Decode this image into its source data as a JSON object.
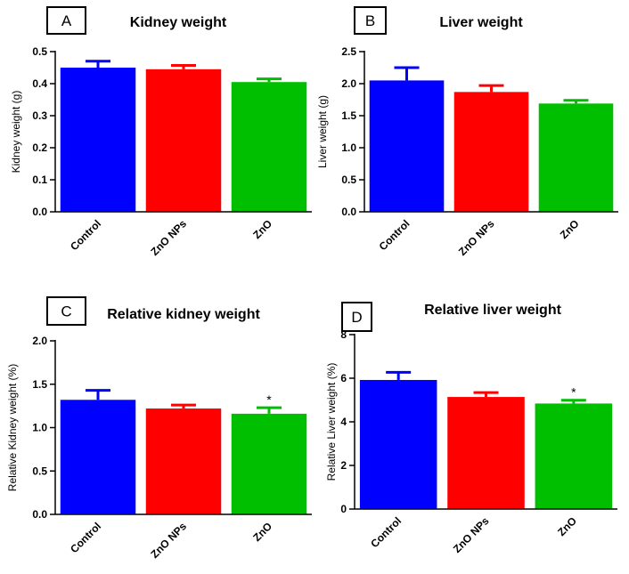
{
  "colors": {
    "Control": "#0000ff",
    "ZnO NPs": "#ff0000",
    "ZnO": "#00bf00",
    "axis": "#000000"
  },
  "chart_data": [
    {
      "panel": "A",
      "type": "bar",
      "title": "Kidney weight",
      "xlabel": "",
      "ylabel": "Kidney weight (g)",
      "categories": [
        "Control",
        "ZnO NPs",
        "ZnO"
      ],
      "values": [
        0.45,
        0.445,
        0.405
      ],
      "errors": [
        0.02,
        0.012,
        0.01
      ],
      "annotations": [
        "",
        "",
        ""
      ],
      "ylim": [
        0,
        0.5
      ],
      "yticks": [
        0.0,
        0.1,
        0.2,
        0.3,
        0.4,
        0.5
      ],
      "ytick_labels": [
        "0.0",
        "0.1",
        "0.2",
        "0.3",
        "0.4",
        "0.5"
      ]
    },
    {
      "panel": "B",
      "type": "bar",
      "title": "Liver weight",
      "xlabel": "",
      "ylabel": "Liver weight (g)",
      "categories": [
        "Control",
        "ZnO NPs",
        "ZnO"
      ],
      "values": [
        2.05,
        1.87,
        1.69
      ],
      "errors": [
        0.2,
        0.1,
        0.05
      ],
      "annotations": [
        "",
        "",
        ""
      ],
      "ylim": [
        0,
        2.5
      ],
      "yticks": [
        0.0,
        0.5,
        1.0,
        1.5,
        2.0,
        2.5
      ],
      "ytick_labels": [
        "0.0",
        "0.5",
        "1.0",
        "1.5",
        "2.0",
        "2.5"
      ]
    },
    {
      "panel": "C",
      "type": "bar",
      "title": "Relative kidney weight",
      "xlabel": "",
      "ylabel": "Relative Kidney weight (%)",
      "categories": [
        "Control",
        "ZnO NPs",
        "ZnO"
      ],
      "values": [
        1.32,
        1.22,
        1.16
      ],
      "errors": [
        0.11,
        0.04,
        0.07
      ],
      "annotations": [
        "",
        "",
        "*"
      ],
      "ylim": [
        0,
        2.0
      ],
      "yticks": [
        0.0,
        0.5,
        1.0,
        1.5,
        2.0
      ],
      "ytick_labels": [
        "0.0",
        "0.5",
        "1.0",
        "1.5",
        "2.0"
      ]
    },
    {
      "panel": "D",
      "type": "bar",
      "title": "Relative liver weight",
      "xlabel": "",
      "ylabel": "Relative Liver weight (%)",
      "categories": [
        "Control",
        "ZnO NPs",
        "ZnO"
      ],
      "values": [
        5.92,
        5.14,
        4.84
      ],
      "errors": [
        0.35,
        0.2,
        0.15
      ],
      "annotations": [
        "",
        "",
        "*"
      ],
      "ylim": [
        0,
        8
      ],
      "yticks": [
        0,
        2,
        4,
        6,
        8
      ],
      "ytick_labels": [
        "0",
        "2",
        "4",
        "6",
        "8"
      ]
    }
  ]
}
